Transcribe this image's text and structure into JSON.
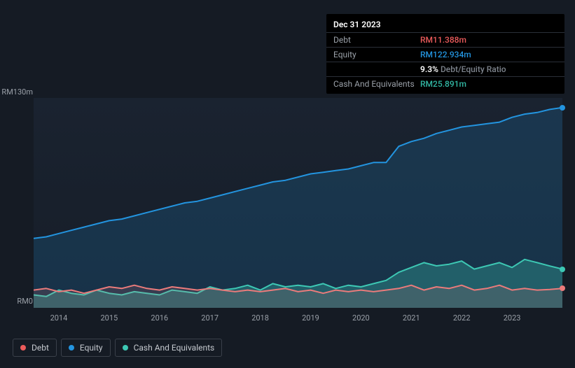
{
  "tooltip": {
    "date": "Dec 31 2023",
    "rows": [
      {
        "label": "Debt",
        "value": "RM11.388m",
        "color": "#eb5b5b"
      },
      {
        "label": "Equity",
        "value": "RM122.934m",
        "color": "#2394df"
      },
      {
        "label": "",
        "value_primary": "9.3%",
        "value_secondary": "Debt/Equity Ratio",
        "color_primary": "#ffffff",
        "color_secondary": "#7d838c"
      },
      {
        "label": "Cash And Equivalents",
        "value": "RM25.891m",
        "color": "#32b8a4"
      }
    ]
  },
  "chart": {
    "type": "line",
    "background_color": "#151b24",
    "plot_bg_gradient": [
      "#1a2330",
      "#161d28"
    ],
    "y_axis": {
      "max_label": "RM130m",
      "min_label": "RM0",
      "ylim": [
        0,
        130
      ],
      "label_color": "#9aa0a8",
      "label_fontsize": 11
    },
    "x_axis": {
      "ticks": [
        "2014",
        "2015",
        "2016",
        "2017",
        "2018",
        "2019",
        "2020",
        "2021",
        "2022",
        "2023"
      ],
      "label_color": "#9aa0a8",
      "label_fontsize": 11
    },
    "series": {
      "equity": {
        "label": "Equity",
        "color": "#2394df",
        "fill_opacity": 0.18,
        "line_width": 2,
        "end_marker": true,
        "data": [
          43,
          44,
          46,
          48,
          50,
          52,
          54,
          55,
          57,
          59,
          61,
          63,
          65,
          66,
          68,
          70,
          72,
          74,
          76,
          78,
          79,
          81,
          83,
          84,
          85,
          86,
          88,
          90,
          90,
          100,
          103,
          105,
          108,
          110,
          112,
          113,
          114,
          115,
          118,
          120,
          121,
          122.9,
          124
        ]
      },
      "cash": {
        "label": "Cash And Equivalents",
        "color": "#3dc8b4",
        "fill_opacity": 0.3,
        "line_width": 2,
        "end_marker": true,
        "data": [
          8,
          7,
          11,
          9,
          8,
          11,
          9,
          8,
          10,
          9,
          8,
          11,
          10,
          9,
          13,
          11,
          12,
          14,
          11,
          15,
          13,
          14,
          13,
          15,
          12,
          14,
          13,
          15,
          17,
          22,
          25,
          28,
          26,
          27,
          29,
          24,
          26,
          28,
          25,
          30,
          28,
          25.9,
          24
        ]
      },
      "debt": {
        "label": "Debt",
        "color": "#eb7b7b",
        "fill_opacity": 0.15,
        "line_width": 2,
        "end_marker": true,
        "data": [
          11,
          12,
          10,
          11,
          9,
          11,
          13,
          12,
          14,
          12,
          11,
          13,
          12,
          11,
          12,
          11,
          10,
          11,
          10,
          11,
          12,
          10,
          11,
          9,
          11,
          10,
          11,
          10,
          11,
          12,
          14,
          11,
          13,
          12,
          14,
          11,
          12,
          14,
          11,
          12,
          11,
          11.4,
          12
        ]
      }
    },
    "legend": {
      "items": [
        {
          "key": "debt",
          "label": "Debt",
          "color": "#eb5b5b"
        },
        {
          "key": "equity",
          "label": "Equity",
          "color": "#2394df"
        },
        {
          "key": "cash",
          "label": "Cash And Equivalents",
          "color": "#3dc8b4"
        }
      ],
      "border_color": "#3a404a",
      "text_color": "#c5c9cf",
      "fontsize": 12
    }
  }
}
